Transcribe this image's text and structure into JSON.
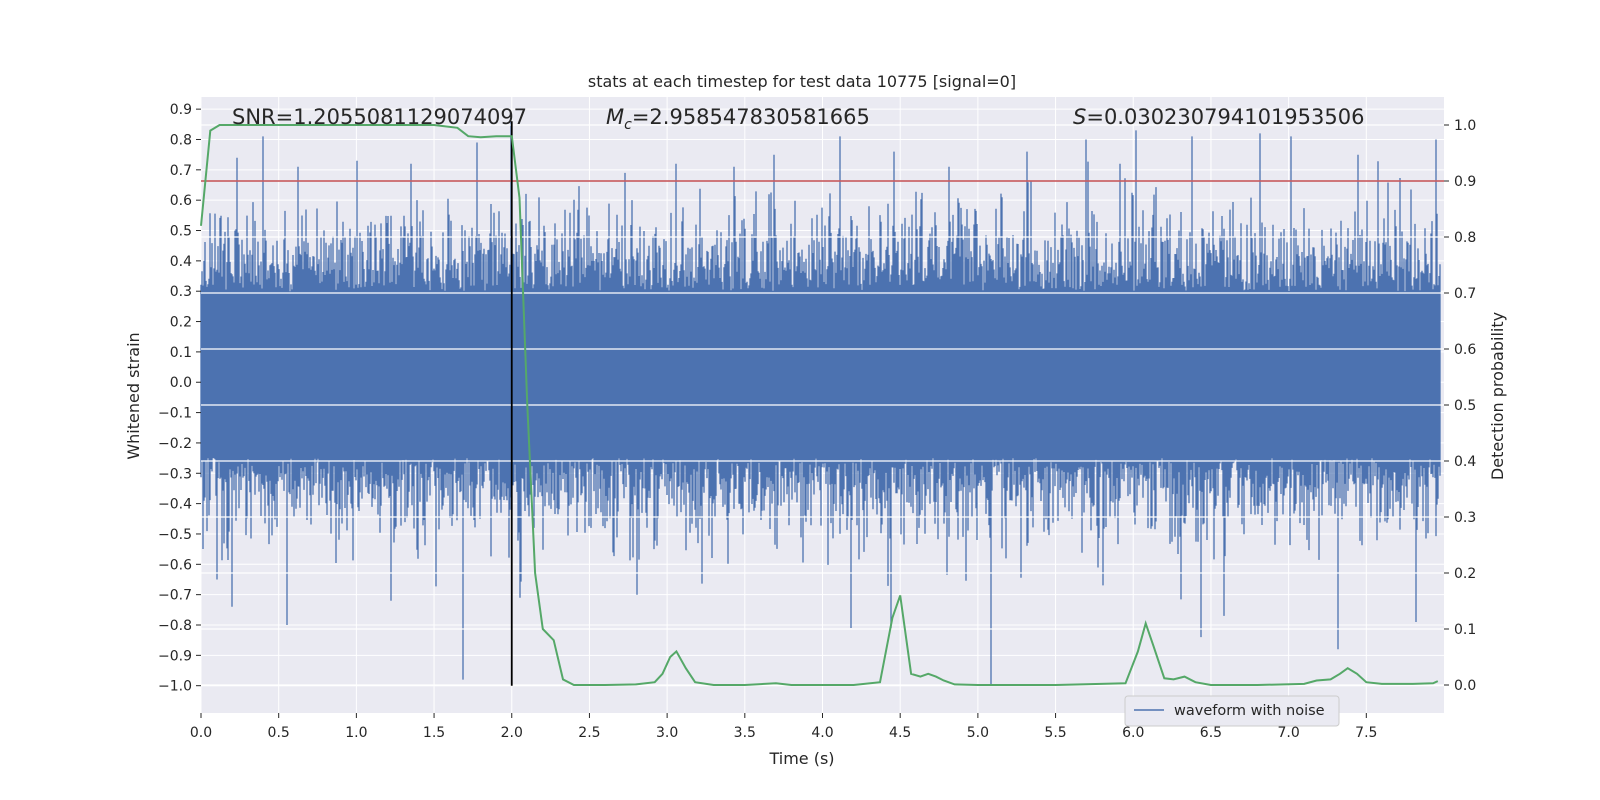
{
  "chart_data": {
    "type": "line",
    "title": "stats at each timestep for test data 10775 [signal=0]",
    "xlabel": "Time (s)",
    "ylabel": "Whitened strain",
    "y2label": "Detection probability",
    "xlim": [
      0.0,
      8.0
    ],
    "ylim": [
      -1.09,
      0.94
    ],
    "y2lim": [
      -0.05,
      1.05
    ],
    "xticks": [
      0.0,
      0.5,
      1.0,
      1.5,
      2.0,
      2.5,
      3.0,
      3.5,
      4.0,
      4.5,
      5.0,
      5.5,
      6.0,
      6.5,
      7.0,
      7.5
    ],
    "xtick_labels": [
      "0.0",
      "0.5",
      "1.0",
      "1.5",
      "2.0",
      "2.5",
      "3.0",
      "3.5",
      "4.0",
      "4.5",
      "5.0",
      "5.5",
      "6.0",
      "6.5",
      "7.0",
      "7.5"
    ],
    "yticks": [
      -1.0,
      -0.9,
      -0.8,
      -0.7,
      -0.6,
      -0.5,
      -0.4,
      -0.3,
      -0.2,
      -0.1,
      0.0,
      0.1,
      0.2,
      0.3,
      0.4,
      0.5,
      0.6,
      0.7,
      0.8,
      0.9
    ],
    "ytick_labels": [
      "−1.0",
      "−0.9",
      "−0.8",
      "−0.7",
      "−0.6",
      "−0.5",
      "−0.4",
      "−0.3",
      "−0.2",
      "−0.1",
      "0.0",
      "0.1",
      "0.2",
      "0.3",
      "0.4",
      "0.5",
      "0.6",
      "0.7",
      "0.8",
      "0.9"
    ],
    "y2ticks": [
      0.0,
      0.1,
      0.2,
      0.3,
      0.4,
      0.5,
      0.6,
      0.7,
      0.8,
      0.9,
      1.0
    ],
    "y2tick_labels": [
      "0.0",
      "0.1",
      "0.2",
      "0.3",
      "0.4",
      "0.5",
      "0.6",
      "0.7",
      "0.8",
      "0.9",
      "1.0"
    ],
    "annotations": {
      "snr": "SNR=1.2055081129074097",
      "mc_symbol": "M",
      "mc_subscript": "c",
      "mc_value": "=2.958547830581665",
      "s_symbol": "S",
      "s_value": "=0.030230794101953506"
    },
    "legend": {
      "entries": [
        "waveform with noise"
      ],
      "location": "lower-right"
    },
    "threshold_line": {
      "value": 0.9,
      "axis": "y2",
      "color": "#c44e52"
    },
    "marker_line": {
      "x": 2.0,
      "y_from": -1.0,
      "y_to": 0.86,
      "color": "#000000"
    },
    "colors": {
      "background": "#eaeaf2",
      "grid": "#ffffff",
      "waveform": "#4c72b0",
      "probability": "#55a868",
      "threshold": "#c44e52",
      "marker": "#000000"
    },
    "waveform_series": {
      "name": "waveform with noise",
      "description": "dense whitened strain noise, 0 to 8 s",
      "x_range": [
        0.0,
        7.98
      ],
      "typical_envelope": [
        -0.25,
        0.3
      ],
      "seed": 10775,
      "upper_spikes": [
        {
          "x": 0.23,
          "y": 0.74
        },
        {
          "x": 0.4,
          "y": 0.81
        },
        {
          "x": 0.62,
          "y": 0.71
        },
        {
          "x": 1.0,
          "y": 0.73
        },
        {
          "x": 1.35,
          "y": 0.72
        },
        {
          "x": 1.77,
          "y": 0.79
        },
        {
          "x": 1.99,
          "y": 0.86
        },
        {
          "x": 2.72,
          "y": 0.69
        },
        {
          "x": 3.05,
          "y": 0.72
        },
        {
          "x": 3.42,
          "y": 0.71
        },
        {
          "x": 3.68,
          "y": 0.75
        },
        {
          "x": 4.1,
          "y": 0.81
        },
        {
          "x": 4.45,
          "y": 0.76
        },
        {
          "x": 4.8,
          "y": 0.71
        },
        {
          "x": 5.3,
          "y": 0.76
        },
        {
          "x": 5.68,
          "y": 0.8
        },
        {
          "x": 5.9,
          "y": 0.72
        },
        {
          "x": 6.0,
          "y": 0.83
        },
        {
          "x": 6.36,
          "y": 0.81
        },
        {
          "x": 6.8,
          "y": 0.82
        },
        {
          "x": 7.0,
          "y": 0.81
        },
        {
          "x": 7.43,
          "y": 0.75
        },
        {
          "x": 7.93,
          "y": 0.8
        }
      ],
      "lower_spikes": [
        {
          "x": 0.1,
          "y": -0.65
        },
        {
          "x": 0.2,
          "y": -0.74
        },
        {
          "x": 0.55,
          "y": -0.8
        },
        {
          "x": 1.22,
          "y": -0.72
        },
        {
          "x": 1.68,
          "y": -0.98
        },
        {
          "x": 2.05,
          "y": -0.71
        },
        {
          "x": 2.8,
          "y": -0.7
        },
        {
          "x": 4.17,
          "y": -0.81
        },
        {
          "x": 4.43,
          "y": -0.81
        },
        {
          "x": 5.07,
          "y": -1.0
        },
        {
          "x": 6.42,
          "y": -0.84
        },
        {
          "x": 6.57,
          "y": -0.77
        },
        {
          "x": 7.3,
          "y": -0.88
        },
        {
          "x": 7.8,
          "y": -0.79
        }
      ]
    },
    "probability_series": {
      "name": "Detection probability",
      "axis": "y2",
      "x": [
        0.0,
        0.06,
        0.12,
        0.2,
        0.5,
        1.0,
        1.5,
        1.65,
        1.72,
        1.8,
        1.9,
        1.96,
        2.0,
        2.05,
        2.1,
        2.15,
        2.2,
        2.27,
        2.33,
        2.4,
        2.6,
        2.8,
        2.92,
        2.97,
        3.02,
        3.06,
        3.12,
        3.18,
        3.3,
        3.5,
        3.7,
        3.8,
        4.0,
        4.2,
        4.37,
        4.45,
        4.5,
        4.57,
        4.63,
        4.68,
        4.73,
        4.78,
        4.85,
        5.0,
        5.5,
        5.95,
        6.03,
        6.08,
        6.13,
        6.2,
        6.26,
        6.33,
        6.4,
        6.5,
        6.8,
        7.1,
        7.18,
        7.27,
        7.33,
        7.38,
        7.44,
        7.5,
        7.6,
        7.8,
        7.93,
        7.96
      ],
      "y": [
        0.82,
        0.99,
        1.0,
        1.0,
        1.0,
        1.0,
        1.0,
        0.995,
        0.98,
        0.978,
        0.98,
        0.98,
        0.98,
        0.87,
        0.5,
        0.2,
        0.1,
        0.08,
        0.01,
        0.0,
        0.0,
        0.001,
        0.005,
        0.02,
        0.05,
        0.06,
        0.03,
        0.005,
        0.0,
        0.0,
        0.003,
        0.0,
        0.0,
        0.0,
        0.005,
        0.12,
        0.16,
        0.02,
        0.015,
        0.02,
        0.015,
        0.008,
        0.001,
        0.0,
        0.0,
        0.003,
        0.06,
        0.11,
        0.07,
        0.012,
        0.01,
        0.015,
        0.005,
        0.0,
        0.0,
        0.002,
        0.008,
        0.01,
        0.02,
        0.03,
        0.02,
        0.005,
        0.002,
        0.002,
        0.003,
        0.007
      ]
    }
  }
}
